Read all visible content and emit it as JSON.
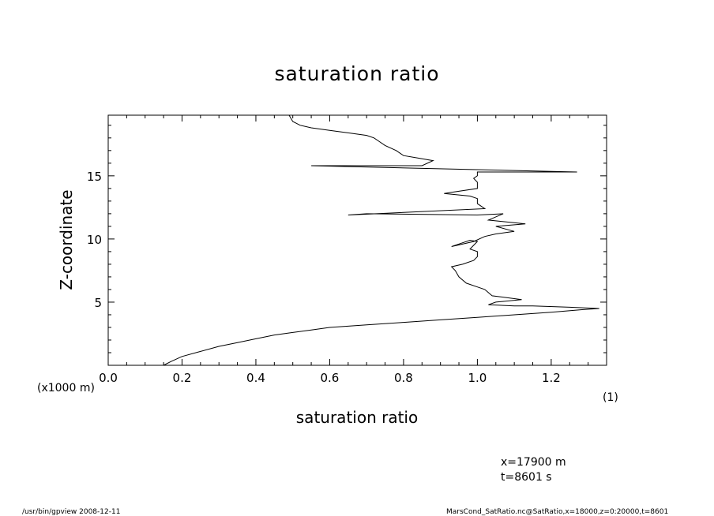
{
  "chart_data": {
    "type": "line",
    "title": "saturation ratio",
    "xlabel": "saturation ratio",
    "ylabel": "Z-coordinate",
    "xunit": "(1)",
    "yunit": "(x1000 m)",
    "xlim": [
      0.0,
      1.35
    ],
    "ylim": [
      0,
      19.8
    ],
    "xticks": [
      0.0,
      0.2,
      0.4,
      0.6,
      0.8,
      1.0,
      1.2
    ],
    "xtick_labels": [
      "0.0",
      "0.2",
      "0.4",
      "0.6",
      "0.8",
      "1.0",
      "1.2"
    ],
    "yticks": [
      5,
      10,
      15
    ],
    "ytick_labels": [
      "5",
      "10",
      "15"
    ],
    "grid": false,
    "series": [
      {
        "x": [
          0.15,
          0.17,
          0.2,
          0.25,
          0.3,
          0.35,
          0.4,
          0.45,
          0.5,
          0.55,
          0.6,
          0.7,
          0.8,
          0.9,
          1.0,
          1.1,
          1.2,
          1.28,
          1.33,
          1.25,
          1.15,
          1.1,
          1.03,
          1.05,
          1.12,
          1.04,
          1.02,
          1.0,
          0.97,
          0.95,
          0.94,
          0.93,
          0.96,
          0.99,
          1.0,
          1.0,
          0.98,
          0.99,
          1.0,
          0.98,
          0.95,
          0.93,
          0.99,
          1.02,
          1.05,
          1.1,
          1.05,
          1.13,
          1.03,
          1.07,
          1.0,
          0.7,
          0.65,
          1.02,
          1.0,
          1.0,
          0.98,
          0.91,
          0.93,
          1.0,
          1.0,
          0.99,
          1.0,
          1.0,
          1.0,
          1.27,
          0.55,
          0.85,
          0.88,
          0.84,
          0.8,
          0.78,
          0.75,
          0.73,
          0.72,
          0.7,
          0.65,
          0.6,
          0.55,
          0.52,
          0.5,
          0.49
        ],
        "y": [
          0,
          0.3,
          0.7,
          1.1,
          1.5,
          1.8,
          2.1,
          2.4,
          2.6,
          2.8,
          3.0,
          3.2,
          3.4,
          3.6,
          3.8,
          4.0,
          4.2,
          4.4,
          4.5,
          4.6,
          4.7,
          4.7,
          4.8,
          5.0,
          5.2,
          5.5,
          6.0,
          6.2,
          6.5,
          7.0,
          7.5,
          7.8,
          8.0,
          8.3,
          8.6,
          9.0,
          9.2,
          9.5,
          9.8,
          9.9,
          9.6,
          9.4,
          9.8,
          10.2,
          10.4,
          10.6,
          11.0,
          11.2,
          11.5,
          12.0,
          11.9,
          12.0,
          11.9,
          12.4,
          12.8,
          13.2,
          13.4,
          13.6,
          13.7,
          14.0,
          14.5,
          14.8,
          15.0,
          15.2,
          15.3,
          15.3,
          15.8,
          15.8,
          16.2,
          16.4,
          16.6,
          17.0,
          17.4,
          17.8,
          18.0,
          18.2,
          18.4,
          18.6,
          18.8,
          19.0,
          19.3,
          19.8
        ]
      }
    ]
  },
  "info": {
    "x_position": "x=17900 m",
    "time": "t=8601 s"
  },
  "footer": {
    "left": "/usr/bin/gpview   2008-12-11",
    "right": "MarsCond_SatRatio.nc@SatRatio,x=18000,z=0:20000,t=8601"
  }
}
